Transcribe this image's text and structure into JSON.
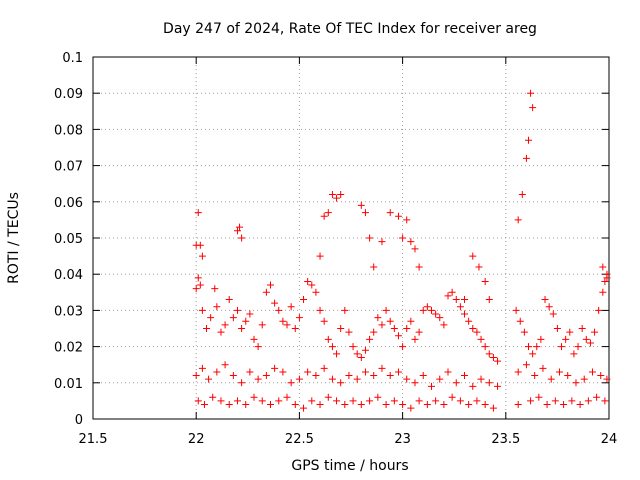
{
  "chart_data": {
    "type": "scatter",
    "title": "Day 247 of 2024, Rate Of TEC Index for receiver areg",
    "xlabel": "GPS time / hours",
    "ylabel": "ROTI / TECUs",
    "xlim": [
      21.5,
      24
    ],
    "ylim": [
      0,
      0.1
    ],
    "xticks": [
      "21.5",
      "22",
      "22.5",
      "23",
      "23.5",
      "24"
    ],
    "yticks": [
      "0",
      "0.01",
      "0.02",
      "0.03",
      "0.04",
      "0.05",
      "0.06",
      "0.07",
      "0.08",
      "0.09",
      "0.1"
    ],
    "grid": true,
    "marker": "+",
    "color": "#ff0000",
    "series": [
      {
        "name": "ROTI",
        "x": [
          22.0,
          22.01,
          22.02,
          22.03,
          22.05,
          22.07,
          22.09,
          22.1,
          22.12,
          22.14,
          22.16,
          22.18,
          22.2,
          22.22,
          22.24,
          22.26,
          22.28,
          22.3,
          22.32,
          22.34,
          22.36,
          22.38,
          22.4,
          22.42,
          22.44,
          22.46,
          22.48,
          22.5,
          22.52,
          22.54,
          22.56,
          22.58,
          22.6,
          22.62,
          22.64,
          22.66,
          22.68,
          22.7,
          22.72,
          22.74,
          22.76,
          22.78,
          22.8,
          22.82,
          22.84,
          22.86,
          22.88,
          22.9,
          22.92,
          22.94,
          22.96,
          22.98,
          23.0,
          23.02,
          23.04,
          23.06,
          23.08,
          23.1,
          23.12,
          23.14,
          23.16,
          23.18,
          23.2,
          23.22,
          23.24,
          23.26,
          23.28,
          23.3,
          23.32,
          23.34,
          23.36,
          23.38,
          23.4,
          23.42,
          23.44,
          23.46,
          23.55,
          23.57,
          23.59,
          23.61,
          23.63,
          23.65,
          23.67,
          23.69,
          23.71,
          23.73,
          23.75,
          23.77,
          23.79,
          23.81,
          23.83,
          23.85,
          23.87,
          23.89,
          23.91,
          23.93,
          23.95,
          23.97,
          23.99,
          22.0,
          22.01,
          22.02,
          22.03,
          22.2,
          22.21,
          22.22,
          22.6,
          22.62,
          22.64,
          22.66,
          22.68,
          22.7,
          22.8,
          22.82,
          22.84,
          22.86,
          22.9,
          22.94,
          22.98,
          23.0,
          23.02,
          23.04,
          23.06,
          23.08,
          23.3,
          23.34,
          23.37,
          23.4,
          23.42,
          23.56,
          23.58,
          23.6,
          23.61,
          23.62,
          23.63,
          23.97,
          23.98,
          23.99,
          22.0,
          22.03,
          22.06,
          22.1,
          22.14,
          22.18,
          22.22,
          22.26,
          22.3,
          22.34,
          22.38,
          22.42,
          22.46,
          22.5,
          22.54,
          22.58,
          22.62,
          22.66,
          22.7,
          22.74,
          22.78,
          22.82,
          22.86,
          22.9,
          22.94,
          22.98,
          23.02,
          23.06,
          23.1,
          23.14,
          23.18,
          23.22,
          23.26,
          23.3,
          23.34,
          23.38,
          23.42,
          23.46,
          23.56,
          23.6,
          23.64,
          23.68,
          23.72,
          23.76,
          23.8,
          23.84,
          23.88,
          23.92,
          23.96,
          23.99,
          22.01,
          22.04,
          22.08,
          22.12,
          22.16,
          22.2,
          22.24,
          22.28,
          22.32,
          22.36,
          22.4,
          22.44,
          22.48,
          22.52,
          22.56,
          22.6,
          22.64,
          22.68,
          22.72,
          22.76,
          22.8,
          22.84,
          22.88,
          22.92,
          22.96,
          23.0,
          23.04,
          23.08,
          23.12,
          23.16,
          23.2,
          23.24,
          23.28,
          23.32,
          23.36,
          23.4,
          23.44,
          23.56,
          23.62,
          23.66,
          23.7,
          23.74,
          23.78,
          23.82,
          23.86,
          23.9,
          23.94,
          23.98
        ],
        "y": [
          0.036,
          0.039,
          0.037,
          0.03,
          0.025,
          0.028,
          0.036,
          0.031,
          0.024,
          0.026,
          0.033,
          0.028,
          0.03,
          0.025,
          0.027,
          0.029,
          0.022,
          0.02,
          0.026,
          0.035,
          0.037,
          0.032,
          0.03,
          0.027,
          0.026,
          0.031,
          0.025,
          0.028,
          0.033,
          0.038,
          0.037,
          0.035,
          0.03,
          0.027,
          0.022,
          0.02,
          0.018,
          0.025,
          0.03,
          0.024,
          0.02,
          0.018,
          0.017,
          0.019,
          0.022,
          0.024,
          0.028,
          0.026,
          0.03,
          0.027,
          0.025,
          0.023,
          0.02,
          0.025,
          0.027,
          0.022,
          0.024,
          0.03,
          0.031,
          0.03,
          0.029,
          0.028,
          0.026,
          0.034,
          0.035,
          0.033,
          0.031,
          0.029,
          0.027,
          0.025,
          0.024,
          0.022,
          0.02,
          0.018,
          0.017,
          0.016,
          0.03,
          0.027,
          0.024,
          0.02,
          0.018,
          0.02,
          0.022,
          0.033,
          0.031,
          0.029,
          0.025,
          0.02,
          0.022,
          0.024,
          0.018,
          0.02,
          0.025,
          0.022,
          0.021,
          0.024,
          0.03,
          0.035,
          0.04,
          0.048,
          0.057,
          0.048,
          0.045,
          0.052,
          0.053,
          0.05,
          0.045,
          0.056,
          0.057,
          0.062,
          0.061,
          0.062,
          0.059,
          0.057,
          0.05,
          0.042,
          0.049,
          0.057,
          0.056,
          0.05,
          0.055,
          0.049,
          0.047,
          0.042,
          0.033,
          0.045,
          0.042,
          0.038,
          0.033,
          0.055,
          0.062,
          0.072,
          0.077,
          0.09,
          0.086,
          0.042,
          0.038,
          0.039,
          0.012,
          0.014,
          0.011,
          0.013,
          0.015,
          0.012,
          0.01,
          0.013,
          0.011,
          0.012,
          0.014,
          0.013,
          0.01,
          0.011,
          0.013,
          0.012,
          0.014,
          0.011,
          0.01,
          0.012,
          0.011,
          0.013,
          0.012,
          0.014,
          0.012,
          0.013,
          0.011,
          0.01,
          0.012,
          0.009,
          0.011,
          0.013,
          0.01,
          0.012,
          0.009,
          0.011,
          0.01,
          0.009,
          0.013,
          0.015,
          0.012,
          0.014,
          0.011,
          0.013,
          0.012,
          0.01,
          0.011,
          0.013,
          0.012,
          0.011,
          0.005,
          0.004,
          0.006,
          0.005,
          0.004,
          0.005,
          0.004,
          0.006,
          0.005,
          0.004,
          0.005,
          0.006,
          0.004,
          0.003,
          0.005,
          0.004,
          0.006,
          0.005,
          0.004,
          0.005,
          0.004,
          0.005,
          0.006,
          0.004,
          0.005,
          0.004,
          0.003,
          0.005,
          0.004,
          0.005,
          0.004,
          0.006,
          0.005,
          0.004,
          0.005,
          0.004,
          0.003,
          0.004,
          0.005,
          0.006,
          0.004,
          0.005,
          0.004,
          0.005,
          0.004,
          0.005,
          0.006,
          0.005
        ]
      }
    ]
  }
}
